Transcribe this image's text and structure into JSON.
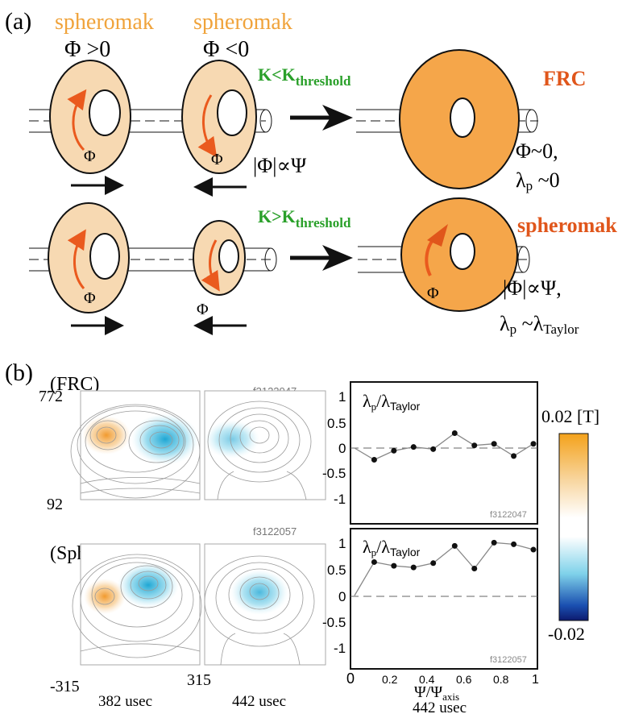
{
  "panel_a": {
    "label": "(a)",
    "spheromak_pos": {
      "name": "spheromak",
      "sign": "Φ >0"
    },
    "spheromak_neg": {
      "name": "spheromak",
      "sign": "Φ <0"
    },
    "phi": "Φ",
    "cond_low": {
      "prefix": "K<K",
      "sub": "threshold"
    },
    "cond_high": {
      "prefix": "K>K",
      "sub": "threshold"
    },
    "prop_flux": "|Φ|∝Ψ",
    "frc": {
      "title": "FRC",
      "line1": "Φ~0,",
      "line2_lambda": "λ",
      "line2_sub": "p",
      "line2_rest": " ~0"
    },
    "sph": {
      "title": "spheromak",
      "line1": "|Φ|∝Ψ,",
      "line2_lambda": "λ",
      "line2_sub": "p",
      "line2_mid": " ~",
      "line2_lambda2": "λ",
      "line2_sub2": "Taylor"
    }
  },
  "panel_b": {
    "label": "(b)",
    "row1": {
      "title": "(FRC)",
      "shot": "f3122047"
    },
    "row2": {
      "title": "(Spheromak)",
      "shot": "f3122057"
    },
    "yticks": [
      "772",
      "92"
    ],
    "xticks": [
      "-315",
      "315"
    ],
    "times": [
      "382 usec",
      "442 usec"
    ],
    "plot_ylabel": {
      "lambda": "λ",
      "p": "p",
      "slash": "/",
      "taylor_lambda": "λ",
      "taylor": "Taylor"
    },
    "plot_shots": [
      "f3122047",
      "f3122057"
    ],
    "plot_yticks": [
      "1",
      "0.5",
      "0",
      "-0.5",
      "-1"
    ],
    "plot_xticks": [
      "0",
      "0.2",
      "0.4",
      "0.6",
      "0.8",
      "1"
    ],
    "plot_xlabel": "Ψ/Ψ",
    "plot_xlabel_sub": "axis",
    "plot_time": "442 usec",
    "colorbar": {
      "max": "0.02 [T]",
      "min": "-0.02"
    }
  },
  "chart_data": [
    {
      "type": "line",
      "ylim": [
        -1.2,
        1.2
      ],
      "xlim": [
        0,
        1
      ],
      "x": [
        0.0,
        0.11,
        0.22,
        0.33,
        0.44,
        0.56,
        0.67,
        0.78,
        0.89,
        1.0
      ],
      "series": [
        {
          "values": [
            0.0,
            -0.22,
            -0.05,
            0.02,
            -0.02,
            0.28,
            0.05,
            0.08,
            -0.15,
            0.08
          ]
        }
      ]
    },
    {
      "type": "line",
      "ylim": [
        -1.2,
        1.2
      ],
      "xlim": [
        0,
        1
      ],
      "x": [
        0.0,
        0.11,
        0.22,
        0.33,
        0.44,
        0.56,
        0.67,
        0.78,
        0.89,
        1.0
      ],
      "series": [
        {
          "values": [
            0.0,
            0.62,
            0.55,
            0.52,
            0.6,
            0.92,
            0.5,
            0.98,
            0.95,
            0.85
          ]
        }
      ]
    }
  ],
  "colors": {
    "spheromak_label": "#f0a33b",
    "frc_label": "#e0561b",
    "condition": "#2aa02a",
    "torus_light": "#f7d9b2",
    "torus_dark": "#f5a64a",
    "arrow": "#ea5a1e"
  }
}
